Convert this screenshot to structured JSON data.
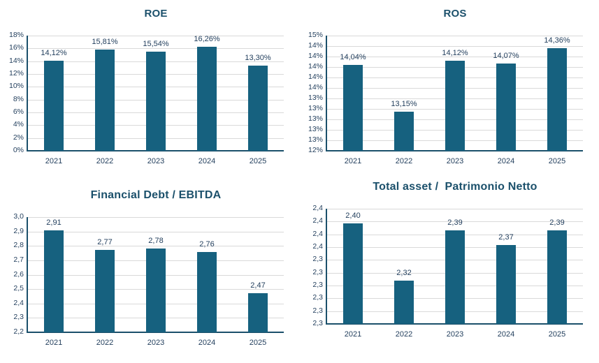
{
  "page": {
    "background": "#ffffff"
  },
  "colors": {
    "bar": "#16617F",
    "title": "#1B506B",
    "axis_text": "#24405E",
    "gridline": "#D9D9D9",
    "axis_line": "#1B506B"
  },
  "chart_data": [
    {
      "type": "bar",
      "title": "ROE",
      "categories": [
        "2021",
        "2022",
        "2023",
        "2024",
        "2025"
      ],
      "values": [
        14.12,
        15.81,
        15.54,
        16.26,
        13.3
      ],
      "value_labels": [
        "14,12%",
        "15,81%",
        "15,54%",
        "16,26%",
        "13,30%"
      ],
      "y_ticks": [
        "18%",
        "16%",
        "14%",
        "12%",
        "10%",
        "8%",
        "6%",
        "4%",
        "2%",
        "0%"
      ],
      "axis_min": 0,
      "axis_max": 18,
      "grid": "horizontal",
      "legend": "none"
    },
    {
      "type": "bar",
      "title": "ROS",
      "categories": [
        "2021",
        "2022",
        "2023",
        "2024",
        "2025"
      ],
      "values": [
        14.04,
        13.15,
        14.12,
        14.07,
        14.36
      ],
      "value_labels": [
        "14,04%",
        "13,15%",
        "14,12%",
        "14,07%",
        "14,36%"
      ],
      "y_ticks": [
        "15%",
        "14%",
        "14%",
        "14%",
        "14%",
        "14%",
        "13%",
        "13%",
        "13%",
        "13%",
        "13%",
        "12%"
      ],
      "axis_min": 12.4,
      "axis_max": 14.6,
      "grid": "horizontal",
      "legend": "none"
    },
    {
      "type": "bar",
      "title": "Financial Debt / EBITDA",
      "categories": [
        "2021",
        "2022",
        "2023",
        "2024",
        "2025"
      ],
      "values": [
        2.91,
        2.77,
        2.78,
        2.76,
        2.47
      ],
      "value_labels": [
        "2,91",
        "2,77",
        "2,78",
        "2,76",
        "2,47"
      ],
      "y_ticks": [
        "3,0",
        "2,9",
        "2,8",
        "2,7",
        "2,6",
        "2,5",
        "2,4",
        "2,3",
        "2,2"
      ],
      "axis_min": 2.2,
      "axis_max": 3.0,
      "grid": "horizontal",
      "legend": "none"
    },
    {
      "type": "bar",
      "title": "Total asset /  Patrimonio Netto",
      "categories": [
        "2021",
        "2022",
        "2023",
        "2024",
        "2025"
      ],
      "values": [
        2.4,
        2.32,
        2.39,
        2.37,
        2.39
      ],
      "value_labels": [
        "2,40",
        "2,32",
        "2,39",
        "2,37",
        "2,39"
      ],
      "y_ticks": [
        "2,4",
        "2,4",
        "2,4",
        "2,4",
        "2,3",
        "2,3",
        "2,3",
        "2,3",
        "2,3",
        "2,3"
      ],
      "axis_min": 2.26,
      "axis_max": 2.42,
      "grid": "horizontal",
      "legend": "none"
    }
  ]
}
